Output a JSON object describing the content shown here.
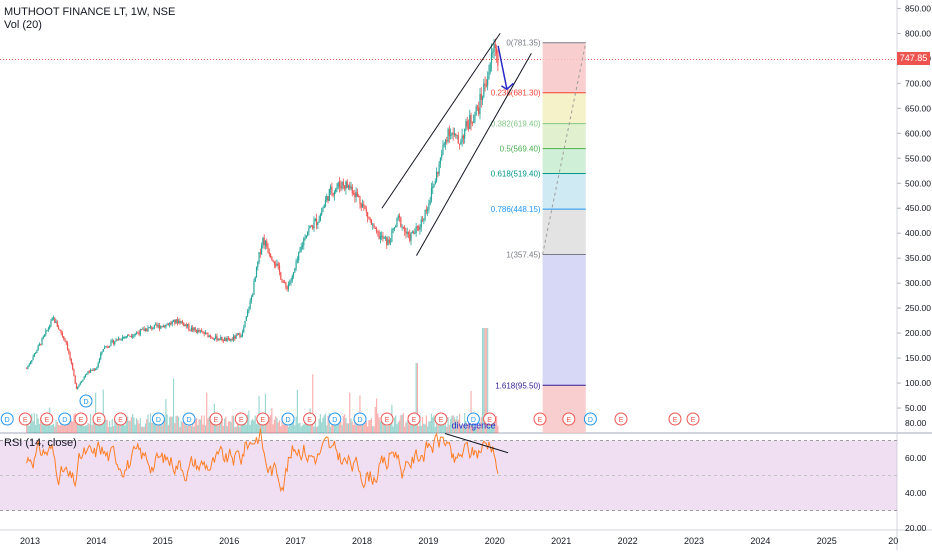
{
  "legend": {
    "title": "MUTHOOT FINANCE LT, 1W, NSE",
    "volume": "Vol (20)",
    "rsi": "RSI (14, close)"
  },
  "price_tag": "747.85",
  "price_axis": [
    "850.00",
    "800.00",
    "750.00",
    "700.00",
    "650.00",
    "600.00",
    "550.00",
    "500.00",
    "450.00",
    "400.00",
    "350.00",
    "300.00",
    "250.00",
    "200.00",
    "150.00",
    "100.00",
    "50.00"
  ],
  "rsi_axis": [
    "80.00",
    "60.00",
    "40.00",
    "20.00"
  ],
  "time_axis": [
    "2013",
    "2014",
    "2015",
    "2016",
    "2017",
    "2018",
    "2019",
    "2020",
    "2021",
    "2022",
    "2023",
    "2024",
    "2025",
    "20"
  ],
  "fib_levels": [
    {
      "label": "0(781.35)",
      "color": "#787b86"
    },
    {
      "label": "0.236(681.30)",
      "color": "#f44336"
    },
    {
      "label": "0.382(619.40)",
      "color": "#81c784"
    },
    {
      "label": "0.5(569.40)",
      "color": "#4caf50"
    },
    {
      "label": "0.618(519.40)",
      "color": "#009688"
    },
    {
      "label": "0.786(448.15)",
      "color": "#2196f3"
    },
    {
      "label": "1(357.45)",
      "color": "#787b86"
    },
    {
      "label": "1.618(95.50)",
      "color": "#311b92"
    }
  ],
  "annotation": "divergence",
  "event_markers": [
    "D",
    "E",
    "E",
    "D",
    "E",
    "E",
    "E",
    "D",
    "D",
    "E",
    "E",
    "E",
    "D",
    "E",
    "D",
    "D",
    "E",
    "E",
    "E",
    "D",
    "E",
    "E",
    "E",
    "D",
    "E",
    "E",
    "E"
  ],
  "colors": {
    "up": "#26a69a",
    "down": "#ef5350",
    "rsi_line": "#ff7f27",
    "rsi_band": "#e1bee7",
    "arrow": "#2929c5"
  }
}
